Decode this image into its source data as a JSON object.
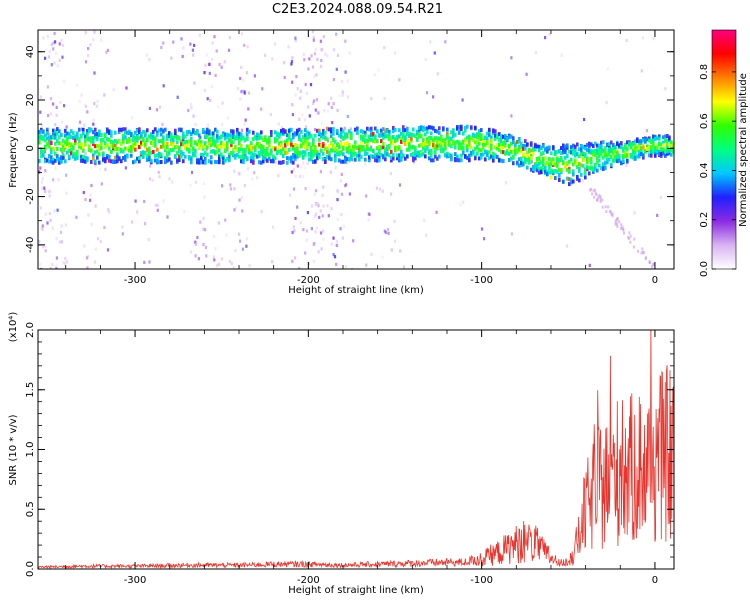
{
  "figure": {
    "title": "C2E3.2024.088.09.54.R21"
  },
  "chart_data": [
    {
      "type": "heatmap",
      "title": "C2E3.2024.088.09.54.R21",
      "xlabel": "Height of straight line (km)",
      "ylabel": "Frequency (Hz)",
      "xlim": [
        -356,
        11
      ],
      "ylim": [
        -50,
        49
      ],
      "x_ticks": [
        -300,
        -200,
        -100,
        0
      ],
      "y_ticks": [
        -40,
        -20,
        0,
        20,
        40
      ],
      "grid": false,
      "colorbar": {
        "label": "Normalized spectral amplitude",
        "range": [
          0,
          0.97
        ],
        "ticks": [
          0.0,
          0.2,
          0.4,
          0.6,
          0.8
        ],
        "colormap": [
          "#ffffff",
          "#d9b3f2",
          "#8a2be2",
          "#2020ff",
          "#00c8ff",
          "#00ff80",
          "#30ff00",
          "#ffff00",
          "#ff8000",
          "#ff0000",
          "#ff0080"
        ]
      },
      "ridge": {
        "name": "",
        "x": [
          -356,
          -300,
          -250,
          -200,
          -150,
          -120,
          -100,
          -85,
          -70,
          -60,
          -50,
          -40,
          -30,
          -20,
          -10,
          0,
          11
        ],
        "center_freq": [
          1,
          1,
          1,
          1,
          2,
          2,
          2,
          0,
          -4,
          -6,
          -7,
          -5,
          -3,
          -2,
          0,
          1,
          1
        ],
        "half_width": [
          5,
          5,
          5,
          5,
          5,
          5,
          5,
          4,
          4,
          5,
          6,
          5,
          4,
          3,
          3,
          3,
          3
        ]
      }
    },
    {
      "type": "line",
      "xlabel": "Height of straight line (km)",
      "ylabel": "SNR (10 * v/v)",
      "y_multiplier": "(x10⁴)",
      "xlim": [
        -356,
        11
      ],
      "ylim": [
        0,
        2.0
      ],
      "x_ticks": [
        -300,
        -200,
        -100,
        0
      ],
      "y_ticks": [
        0.0,
        0.5,
        1.0,
        1.5,
        2.0
      ],
      "y_tick_labels": [
        "0.0",
        "0.5",
        "1.0",
        "1.5",
        "2.0"
      ],
      "grid": false,
      "series": [
        {
          "name": "",
          "color": "#e8342c",
          "x": [
            -356,
            -330,
            -300,
            -270,
            -240,
            -220,
            -200,
            -180,
            -160,
            -140,
            -120,
            -110,
            -100,
            -90,
            -80,
            -70,
            -65,
            -60,
            -55,
            -50,
            -45,
            -40,
            -35,
            -30,
            -25,
            -20,
            -15,
            -10,
            -5,
            0,
            5,
            11
          ],
          "y": [
            0.02,
            0.03,
            0.03,
            0.04,
            0.04,
            0.05,
            0.05,
            0.04,
            0.05,
            0.06,
            0.07,
            0.07,
            0.12,
            0.2,
            0.3,
            0.32,
            0.22,
            0.14,
            0.06,
            0.08,
            0.3,
            0.7,
            0.9,
            1.0,
            1.1,
            1.2,
            1.15,
            1.25,
            1.2,
            1.3,
            1.35,
            1.4
          ]
        }
      ]
    }
  ]
}
